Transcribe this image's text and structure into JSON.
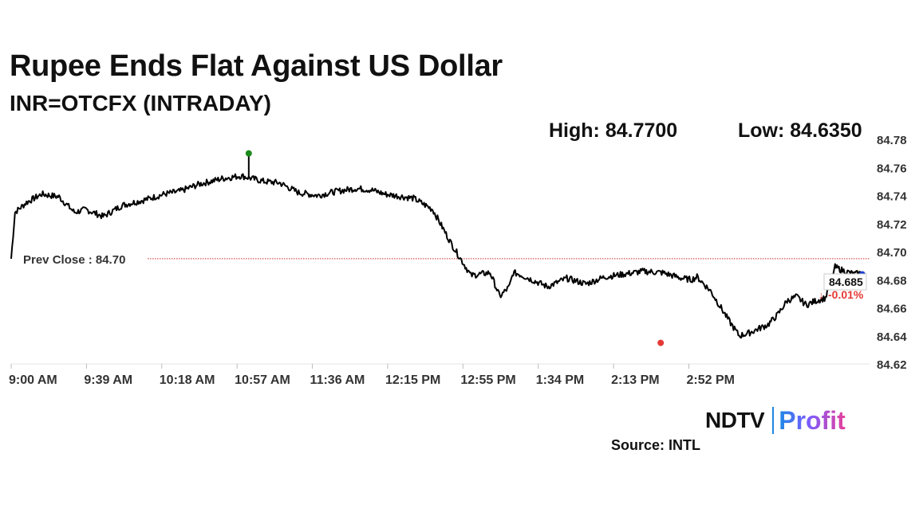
{
  "header": {
    "title": "Rupee Ends Flat Against US Dollar",
    "subtitle": "INR=OTCFX (INTRADAY)",
    "high_text": "High: 84.7700",
    "low_text": "Low: 84.6350"
  },
  "footer": {
    "logo_ndtv": "NDTV",
    "logo_profit": "Profit",
    "source": "Source: INTL"
  },
  "colors": {
    "line": "#000000",
    "high_marker": "#1a8a1a",
    "low_marker": "#e53935",
    "prev_close_line": "#c62828",
    "change": "#e53935",
    "last_marker": "#1e3fd0"
  },
  "chart_data": {
    "type": "line",
    "title": "Rupee Ends Flat Against US Dollar",
    "subtitle": "INR=OTCFX (INTRADAY)",
    "xlabel": "",
    "ylabel": "",
    "x_ticks": [
      "9:00 AM",
      "9:39 AM",
      "10:18 AM",
      "10:57 AM",
      "11:36 AM",
      "12:15 PM",
      "12:55 PM",
      "1:34 PM",
      "2:13 PM",
      "2:52 PM"
    ],
    "y_ticks": [
      "84.78",
      "84.76",
      "84.74",
      "84.72",
      "84.70",
      "84.68",
      "84.66",
      "84.64",
      "84.62"
    ],
    "ylim": [
      84.62,
      84.78
    ],
    "x_minutes_from_open": [
      0,
      2,
      8,
      16,
      25,
      33,
      39,
      48,
      58,
      70,
      80,
      88,
      98,
      110,
      120,
      132,
      140,
      150,
      160,
      170,
      180,
      188,
      195,
      200,
      210,
      220,
      230,
      240,
      250,
      255,
      260,
      262,
      265,
      270,
      275,
      280,
      290,
      300,
      310,
      320,
      330,
      340,
      350,
      355,
      358,
      365,
      375,
      380,
      385,
      390,
      395,
      400,
      405,
      410,
      415,
      420,
      425,
      430,
      435,
      440,
      445
    ],
    "values": [
      84.695,
      84.728,
      84.735,
      84.741,
      84.739,
      84.728,
      84.73,
      84.725,
      84.733,
      84.737,
      84.741,
      84.743,
      84.748,
      84.752,
      84.754,
      84.75,
      84.749,
      84.742,
      84.74,
      84.743,
      84.745,
      84.744,
      84.741,
      84.74,
      84.738,
      84.73,
      84.705,
      84.683,
      84.685,
      84.668,
      84.675,
      84.685,
      84.684,
      84.681,
      84.678,
      84.675,
      84.681,
      84.677,
      84.682,
      84.684,
      84.686,
      84.685,
      84.681,
      84.68,
      84.682,
      84.672,
      84.65,
      84.64,
      84.642,
      84.645,
      84.648,
      84.655,
      84.665,
      84.668,
      84.662,
      84.665,
      84.667,
      84.689,
      84.686,
      84.684,
      84.685
    ],
    "series_name": "",
    "high": {
      "label": "High",
      "value": 84.77,
      "x_minutes_from_open": 124
    },
    "low": {
      "label": "Low",
      "value": 84.635,
      "x_minutes_from_open": 339
    },
    "reference_line": {
      "label": "Prev Close : 84.70",
      "value": 84.695
    },
    "last": {
      "value_text": "84.685",
      "change_text": "-0.01%",
      "direction": "down",
      "value": 84.685
    },
    "grid": false,
    "legend": "none"
  }
}
